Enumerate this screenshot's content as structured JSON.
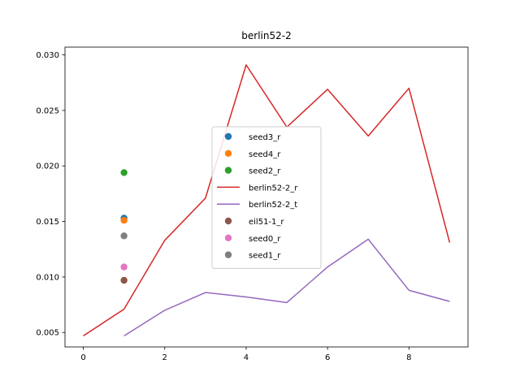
{
  "chart_data": {
    "type": "line",
    "title": "berlin52-2",
    "xlabel": "",
    "ylabel": "",
    "xlim": [
      -0.45,
      9.45
    ],
    "ylim": [
      0.0037,
      0.0307
    ],
    "x_ticks": [
      0,
      2,
      4,
      6,
      8
    ],
    "y_ticks": [
      0.005,
      0.01,
      0.015,
      0.02,
      0.025,
      0.03
    ],
    "x_tick_labels": [
      "0",
      "2",
      "4",
      "6",
      "8"
    ],
    "y_tick_labels": [
      "0.005",
      "0.010",
      "0.015",
      "0.020",
      "0.025",
      "0.030"
    ],
    "grid": false,
    "legend_position": "center",
    "series": [
      {
        "name": "seed3_r",
        "kind": "scatter",
        "color": "#1f77b4",
        "x": [
          1
        ],
        "y": [
          0.0153
        ]
      },
      {
        "name": "seed4_r",
        "kind": "scatter",
        "color": "#ff7f0e",
        "x": [
          1
        ],
        "y": [
          0.0151
        ]
      },
      {
        "name": "seed2_r",
        "kind": "scatter",
        "color": "#2ca02c",
        "x": [
          1
        ],
        "y": [
          0.0194
        ]
      },
      {
        "name": "berlin52-2_r",
        "kind": "line",
        "color": "#d62728",
        "x": [
          0,
          1,
          2,
          3,
          4,
          5,
          6,
          7,
          8,
          9
        ],
        "y": [
          0.0047,
          0.0071,
          0.0133,
          0.0171,
          0.0291,
          0.0235,
          0.0269,
          0.0227,
          0.027,
          0.0131
        ]
      },
      {
        "name": "berlin52-2_t",
        "kind": "line",
        "color": "#9467bd",
        "x": [
          1,
          2,
          3,
          4,
          5,
          6,
          7,
          8,
          9
        ],
        "y": [
          0.0047,
          0.007,
          0.0086,
          0.0082,
          0.0077,
          0.0109,
          0.0134,
          0.0088,
          0.0078
        ]
      },
      {
        "name": "eil51-1_r",
        "kind": "scatter",
        "color": "#8c564b",
        "x": [
          1
        ],
        "y": [
          0.0097
        ]
      },
      {
        "name": "seed0_r",
        "kind": "scatter",
        "color": "#e377c2",
        "x": [
          1
        ],
        "y": [
          0.0109
        ]
      },
      {
        "name": "seed1_r",
        "kind": "scatter",
        "color": "#7f7f7f",
        "x": [
          1
        ],
        "y": [
          0.0137
        ]
      }
    ]
  }
}
